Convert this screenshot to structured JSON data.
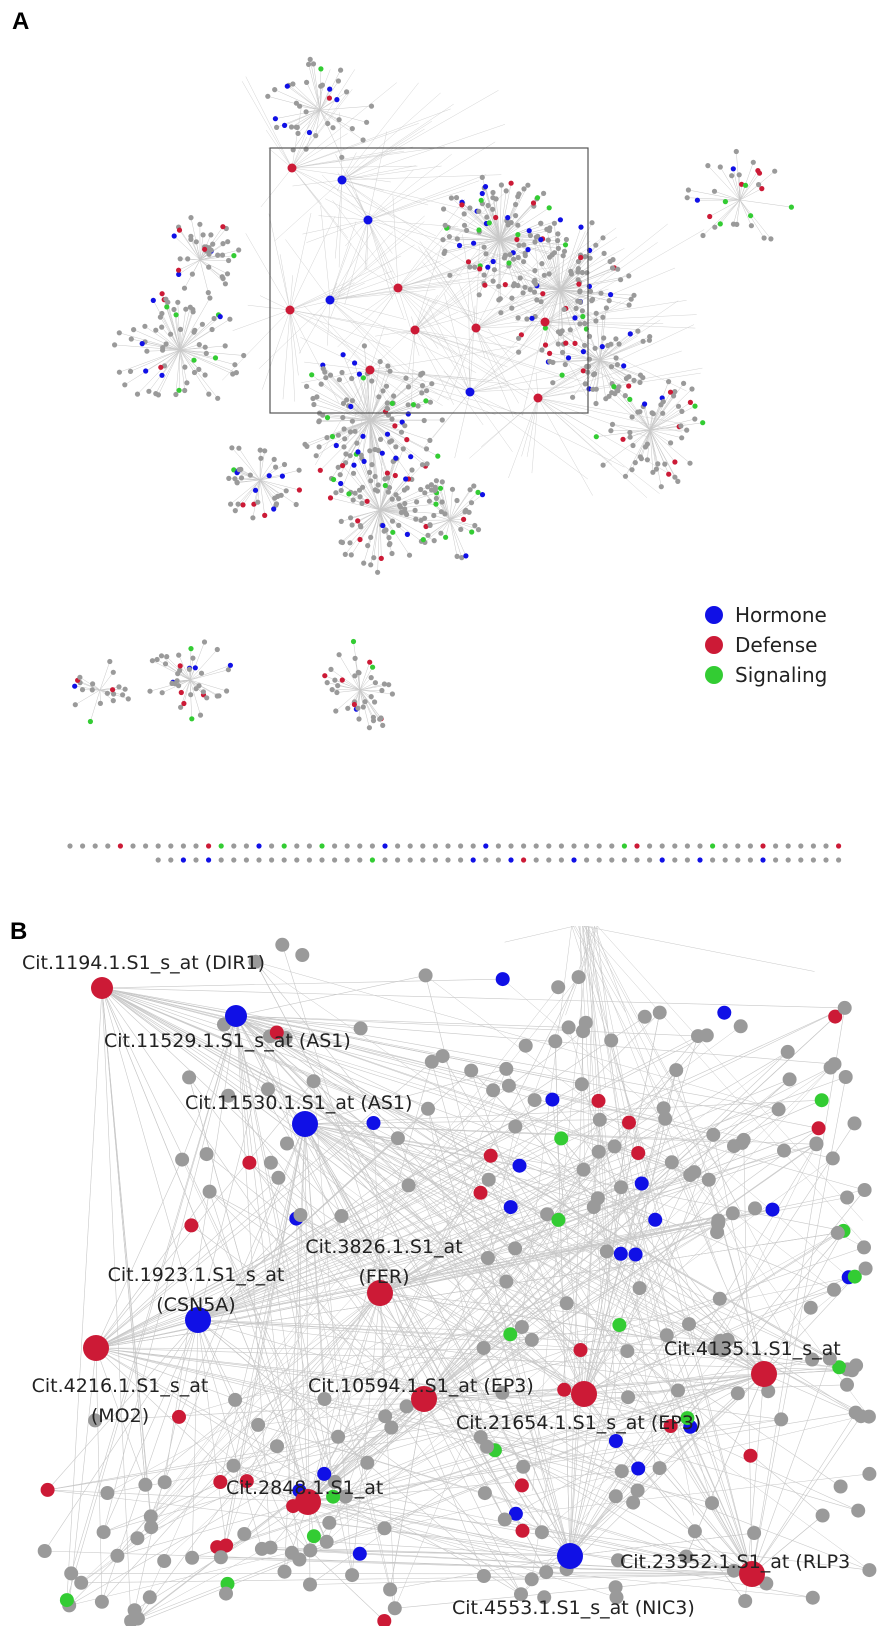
{
  "panels": {
    "a_label": "A",
    "b_label": "B"
  },
  "legend": {
    "items": [
      {
        "label": "Hormone",
        "color": "#1010e6"
      },
      {
        "label": "Defense",
        "color": "#cc1a36"
      },
      {
        "label": "Signaling",
        "color": "#33cc33"
      }
    ]
  },
  "colors": {
    "hormone": "#1010e6",
    "defense": "#cc1a36",
    "signaling": "#33cc33",
    "other": "#9a9a9a",
    "edge": "#c8c8c8"
  },
  "node_labels": {
    "dir1": "Cit.1194.1.S1_s_at (DIR1)",
    "as1a": "Cit.11529.1.S1_s_at (AS1)",
    "as1b": "Cit.11530.1.S1_at (AS1)",
    "fer_1": "Cit.3826.1.S1_at",
    "fer_2": "(FER)",
    "csn5a_1": "Cit.1923.1.S1_s_at",
    "csn5a_2": "(CSN5A)",
    "mo2_1": "Cit.4216.1.S1_s_at",
    "mo2_2": "(MO2)",
    "ep3a": "Cit.10594.1.S1_at (EP3)",
    "ep3b": "Cit.21654.1.S1_s_at (EP3)",
    "c4135": "Cit.4135.1.S1_s_at",
    "c2848": "Cit.2848.1.S1_at",
    "rlp3": "Cit.23352.1.S1_at (RLP3",
    "nic3": "Cit.4553.1.S1_s_at (NIC3)"
  }
}
